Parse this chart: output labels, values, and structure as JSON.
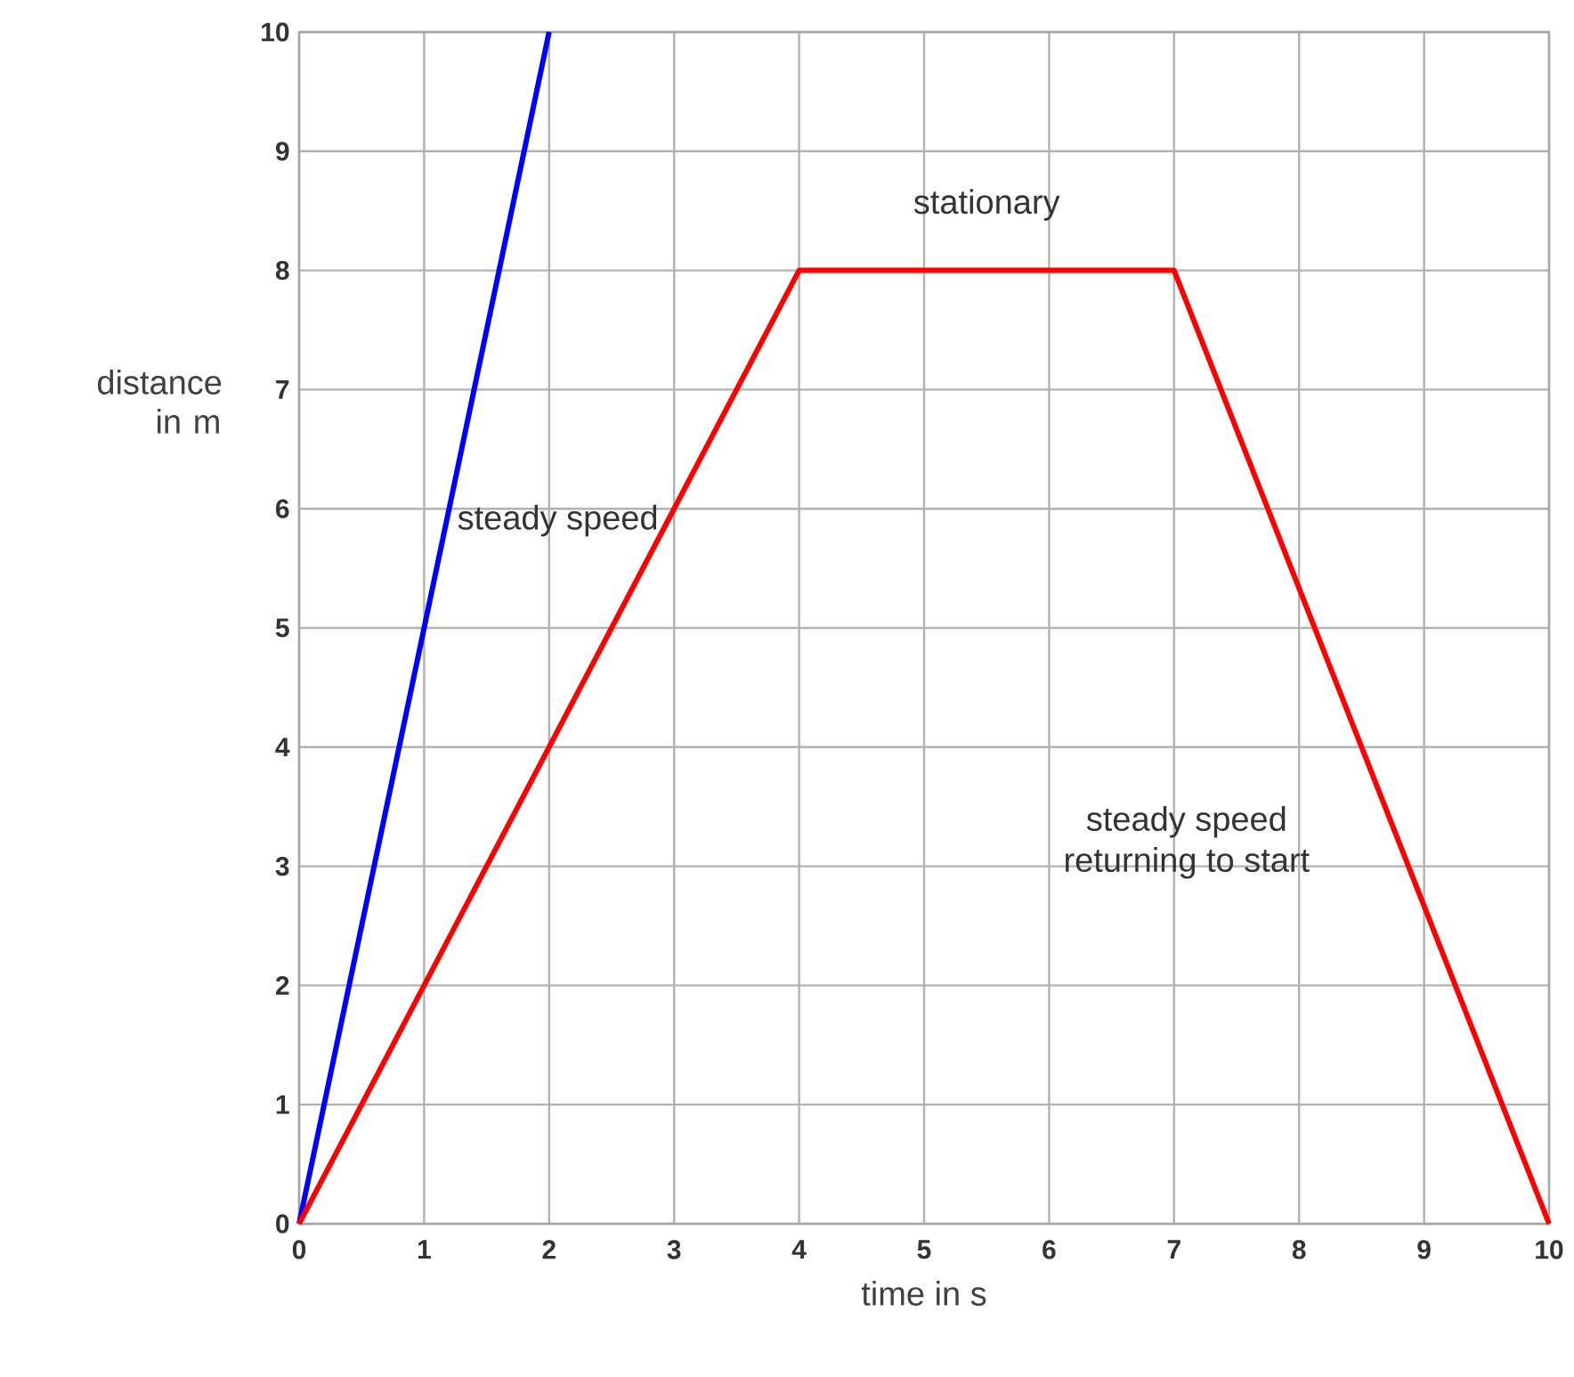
{
  "chart_data": {
    "type": "line",
    "xlabel": "time in s",
    "ylabel": "distance in m",
    "xlim": [
      0,
      10
    ],
    "ylim": [
      0,
      10
    ],
    "xticks": [
      0,
      1,
      2,
      3,
      4,
      5,
      6,
      7,
      8,
      9,
      10
    ],
    "yticks": [
      0,
      1,
      2,
      3,
      4,
      5,
      6,
      7,
      8,
      9,
      10
    ],
    "grid": true,
    "marker": "none",
    "line_style": "solid",
    "series": [
      {
        "color": "#0000ff",
        "x": [
          0,
          2
        ],
        "values": [
          0,
          10
        ]
      },
      {
        "color": "#ff0000",
        "x": [
          0,
          4,
          7,
          10
        ],
        "values": [
          0,
          8,
          8,
          0
        ]
      }
    ],
    "annotations": [
      "stationary",
      "steady speed",
      "steady speed returning to start"
    ]
  }
}
